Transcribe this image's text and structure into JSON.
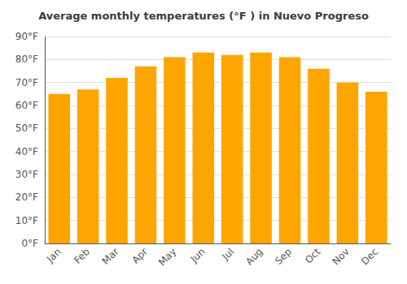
{
  "chart_data": {
    "type": "bar",
    "title": "Average monthly temperatures (°F ) in Nuevo Progreso",
    "categories": [
      "Jan",
      "Feb",
      "Mar",
      "Apr",
      "May",
      "Jun",
      "Jul",
      "Aug",
      "Sep",
      "Oct",
      "Nov",
      "Dec"
    ],
    "values": [
      65,
      67,
      72,
      77,
      81,
      83,
      82,
      83,
      81,
      76,
      70,
      66
    ],
    "color": "#FFA500",
    "ylim": [
      0,
      90
    ],
    "yticks": [
      {
        "value": 0,
        "label": "0°F"
      },
      {
        "value": 10,
        "label": "10°F"
      },
      {
        "value": 20,
        "label": "20°F"
      },
      {
        "value": 30,
        "label": "30°F"
      },
      {
        "value": 40,
        "label": "40°F"
      },
      {
        "value": 50,
        "label": "50°F"
      },
      {
        "value": 60,
        "label": "60°F"
      },
      {
        "value": 70,
        "label": "70°F"
      },
      {
        "value": 80,
        "label": "80°F"
      },
      {
        "value": 90,
        "label": "90°F"
      }
    ],
    "grid": true
  }
}
